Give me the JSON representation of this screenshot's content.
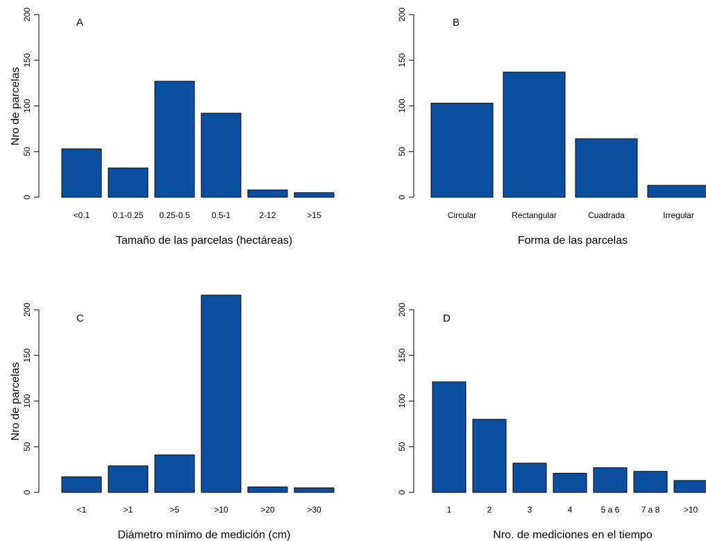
{
  "chart_data": [
    {
      "type": "bar",
      "panel_label": "A",
      "categories": [
        "<0.1",
        "0.1-0.25",
        "0.25-0.5",
        "0.5-1",
        "2-12",
        ">15"
      ],
      "values": [
        53,
        32,
        127,
        92,
        8,
        5
      ],
      "xlabel": "Tamaño de las parcelas (hectáreas)",
      "ylabel": "Nro de parcelas",
      "ylim": [
        0,
        200
      ],
      "yticks": [
        "0",
        "50",
        "100",
        "150",
        "200"
      ],
      "bar_color": "#0b50a0",
      "grid": false
    },
    {
      "type": "bar",
      "panel_label": "B",
      "categories": [
        "Circular",
        "Rectangular",
        "Cuadrada",
        "Irregular"
      ],
      "values": [
        103,
        137,
        64,
        13
      ],
      "xlabel": "Forma de las parcelas",
      "ylabel": "",
      "ylim": [
        0,
        200
      ],
      "yticks": [
        "0",
        "50",
        "100",
        "150",
        "200"
      ],
      "bar_color": "#0b50a0",
      "grid": false
    },
    {
      "type": "bar",
      "panel_label": "C",
      "categories": [
        "<1",
        ">1",
        ">5",
        ">10",
        ">20",
        ">30"
      ],
      "values": [
        17,
        29,
        41,
        216,
        6,
        5
      ],
      "xlabel": "Diámetro mínimo de medición (cm)",
      "ylabel": "Nro de parcelas",
      "ylim": [
        0,
        200
      ],
      "yticks": [
        "0",
        "50",
        "100",
        "150",
        "200"
      ],
      "bar_color": "#0b50a0",
      "grid": false
    },
    {
      "type": "bar",
      "panel_label": "D",
      "categories": [
        "1",
        "2",
        "3",
        "4",
        "5 a 6",
        "7 a 8",
        ">10"
      ],
      "values": [
        121,
        80,
        32,
        21,
        27,
        23,
        13
      ],
      "xlabel": "Nro. de mediciones en el tiempo",
      "ylabel": "",
      "ylim": [
        0,
        200
      ],
      "yticks": [
        "0",
        "50",
        "100",
        "150",
        "200"
      ],
      "bar_color": "#0b50a0",
      "grid": false
    }
  ]
}
